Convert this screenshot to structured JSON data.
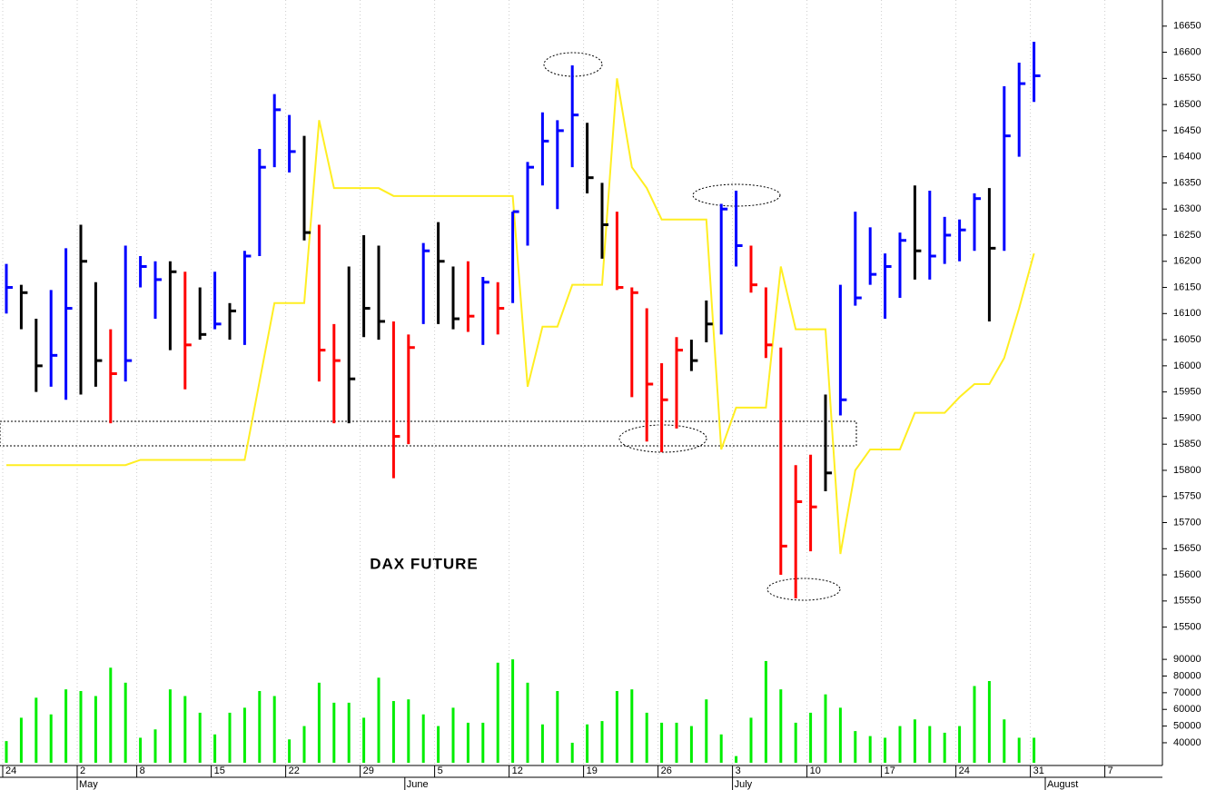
{
  "chart_data": [
    {
      "type": "ohlc",
      "annotation": "DAX FUTURE",
      "categories": [
        "24",
        null,
        null,
        null,
        null,
        "2",
        null,
        null,
        null,
        "8",
        null,
        null,
        null,
        null,
        "15",
        null,
        null,
        null,
        null,
        "22",
        null,
        null,
        null,
        null,
        "29",
        null,
        null,
        null,
        null,
        "5",
        null,
        null,
        null,
        null,
        "12",
        null,
        null,
        null,
        null,
        "19",
        null,
        null,
        null,
        null,
        "26",
        null,
        null,
        null,
        null,
        "3",
        null,
        null,
        null,
        null,
        "10",
        null,
        null,
        null,
        null,
        "17",
        null,
        null,
        null,
        null,
        "24",
        null,
        null,
        null,
        null,
        "31",
        null,
        null,
        null,
        null,
        "7",
        null,
        null,
        null
      ],
      "months": [
        null,
        null,
        null,
        null,
        null,
        "May",
        null,
        null,
        null,
        null,
        null,
        null,
        null,
        null,
        null,
        null,
        null,
        null,
        null,
        null,
        null,
        null,
        null,
        null,
        null,
        null,
        null,
        "June",
        null,
        null,
        null,
        null,
        null,
        null,
        null,
        null,
        null,
        null,
        null,
        null,
        null,
        null,
        null,
        null,
        null,
        null,
        null,
        null,
        null,
        "July",
        null,
        null,
        null,
        null,
        null,
        null,
        null,
        null,
        null,
        null,
        null,
        null,
        null,
        null,
        null,
        null,
        null,
        null,
        null,
        null,
        "August",
        null,
        null,
        null,
        null,
        null,
        null,
        null
      ],
      "high": [
        16195,
        16155,
        16090,
        16145,
        16225,
        16270,
        16160,
        16070,
        16230,
        16210,
        16200,
        16200,
        16180,
        16150,
        16180,
        16120,
        16220,
        16415,
        16520,
        16480,
        16440,
        16270,
        16080,
        16190,
        16250,
        16230,
        16085,
        16060,
        16235,
        16275,
        16190,
        16200,
        16170,
        16160,
        16295,
        16390,
        16485,
        16470,
        16575,
        16465,
        16350,
        16295,
        16150,
        16110,
        16005,
        16055,
        16050,
        16125,
        16310,
        16335,
        16230,
        16150,
        16035,
        15810,
        15830,
        15945,
        16155,
        16295,
        16265,
        16215,
        16255,
        16345,
        16335,
        16285,
        16280,
        16330,
        16340,
        16535,
        16580,
        16620,
        null,
        null,
        null,
        null,
        null,
        null,
        null,
        null
      ],
      "low": [
        16100,
        16070,
        15950,
        15960,
        15935,
        15945,
        15960,
        15890,
        15970,
        16150,
        16090,
        16030,
        15955,
        16050,
        16070,
        16050,
        16040,
        16210,
        16380,
        16370,
        16240,
        15970,
        15890,
        15890,
        16055,
        16050,
        15785,
        15850,
        16080,
        16080,
        16070,
        16065,
        16040,
        16060,
        16120,
        16230,
        16345,
        16300,
        16380,
        16330,
        16205,
        16145,
        15940,
        15855,
        15835,
        15880,
        15990,
        16045,
        16060,
        16190,
        16140,
        16015,
        15600,
        15555,
        15645,
        15760,
        15905,
        16115,
        16155,
        16090,
        16130,
        16165,
        16165,
        16195,
        16200,
        16220,
        16085,
        16220,
        16400,
        16505,
        null,
        null,
        null,
        null,
        null,
        null,
        null,
        null
      ],
      "close": [
        16150,
        16140,
        16000,
        16020,
        16110,
        16200,
        16010,
        15985,
        16010,
        16190,
        16165,
        16180,
        16040,
        16060,
        16080,
        16105,
        16210,
        16380,
        16490,
        16410,
        16255,
        16030,
        16010,
        15975,
        16110,
        16085,
        15865,
        16035,
        16220,
        16200,
        16090,
        16095,
        16160,
        16110,
        16295,
        16380,
        16430,
        16450,
        16480,
        16360,
        16270,
        16150,
        16140,
        15965,
        15935,
        16030,
        16010,
        16080,
        16300,
        16230,
        16155,
        16040,
        15655,
        15740,
        15730,
        15795,
        15935,
        16130,
        16175,
        16190,
        16240,
        16220,
        16210,
        16250,
        16260,
        16320,
        16225,
        16440,
        16540,
        16555,
        null,
        null,
        null,
        null,
        null,
        null,
        null,
        null
      ],
      "bar_colors": [
        "#0000ff",
        "#000000",
        "#000000",
        "#0000ff",
        "#0000ff",
        "#000000",
        "#000000",
        "#ff0000",
        "#0000ff",
        "#0000ff",
        "#0000ff",
        "#000000",
        "#ff0000",
        "#000000",
        "#0000ff",
        "#000000",
        "#0000ff",
        "#0000ff",
        "#0000ff",
        "#0000ff",
        "#000000",
        "#ff0000",
        "#ff0000",
        "#000000",
        "#000000",
        "#000000",
        "#ff0000",
        "#ff0000",
        "#0000ff",
        "#000000",
        "#000000",
        "#ff0000",
        "#0000ff",
        "#ff0000",
        "#0000ff",
        "#0000ff",
        "#0000ff",
        "#0000ff",
        "#0000ff",
        "#000000",
        "#000000",
        "#ff0000",
        "#ff0000",
        "#ff0000",
        "#ff0000",
        "#ff0000",
        "#000000",
        "#000000",
        "#0000ff",
        "#0000ff",
        "#ff0000",
        "#ff0000",
        "#ff0000",
        "#ff0000",
        "#ff0000",
        "#000000",
        "#0000ff",
        "#0000ff",
        "#0000ff",
        "#0000ff",
        "#0000ff",
        "#000000",
        "#0000ff",
        "#0000ff",
        "#0000ff",
        "#0000ff",
        "#000000",
        "#0000ff",
        "#0000ff",
        "#0000ff",
        null,
        null,
        null,
        null,
        null,
        null,
        null,
        null
      ],
      "line": {
        "color": "#ffee22",
        "values": [
          15810,
          15810,
          15810,
          15810,
          15810,
          15810,
          15810,
          15810,
          15810,
          15820,
          15820,
          15820,
          15820,
          15820,
          15820,
          15820,
          15820,
          15970,
          16120,
          16120,
          16120,
          16470,
          16340,
          16340,
          16340,
          16340,
          16325,
          16325,
          16325,
          16325,
          16325,
          16325,
          16325,
          16325,
          16325,
          15960,
          16075,
          16075,
          16155,
          16155,
          16155,
          16550,
          16380,
          16340,
          16280,
          16280,
          16280,
          16280,
          15840,
          15920,
          15920,
          15920,
          16190,
          16070,
          16070,
          16070,
          15640,
          15800,
          15840,
          15840,
          15840,
          15910,
          15910,
          15910,
          15940,
          15965,
          15965,
          16015,
          16110,
          16215,
          null,
          null,
          null,
          null,
          null,
          null,
          null,
          null
        ]
      },
      "ylim": [
        15475,
        16700
      ],
      "yticks": [
        15500,
        15550,
        15600,
        15650,
        15700,
        15750,
        15800,
        15850,
        15900,
        15950,
        16000,
        16050,
        16100,
        16150,
        16200,
        16250,
        16300,
        16350,
        16400,
        16450,
        16500,
        16550,
        16600,
        16650
      ]
    },
    {
      "type": "bar",
      "color": "#00ee00",
      "values": [
        41000,
        55000,
        67000,
        57000,
        72000,
        71000,
        68000,
        85000,
        76000,
        43000,
        48000,
        72000,
        68000,
        58000,
        45000,
        58000,
        61000,
        71000,
        68000,
        42000,
        50000,
        76000,
        64000,
        64000,
        55000,
        79000,
        65000,
        66000,
        57000,
        50000,
        61000,
        52000,
        52000,
        88000,
        90000,
        76000,
        51000,
        71000,
        40000,
        51000,
        53000,
        71000,
        72000,
        58000,
        52000,
        52000,
        50000,
        66000,
        45000,
        32000,
        55000,
        89000,
        72000,
        52000,
        58000,
        69000,
        61000,
        47000,
        44000,
        43000,
        50000,
        54000,
        50000,
        46000,
        50000,
        74000,
        77000,
        54000,
        43000,
        43000,
        null,
        null,
        null,
        null,
        null,
        null,
        null,
        null
      ],
      "ylim": [
        28000,
        101500
      ],
      "yticks": [
        40000,
        50000,
        60000,
        70000,
        80000,
        90000
      ]
    }
  ]
}
